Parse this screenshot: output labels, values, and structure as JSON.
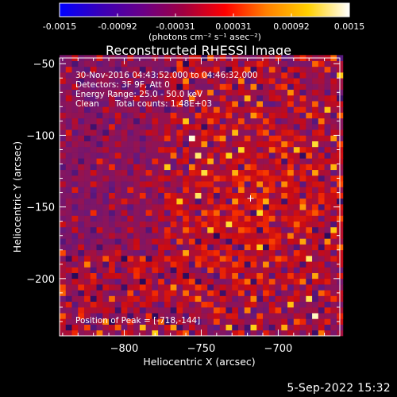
{
  "colorbar": {
    "tick_labels": [
      "-0.0015",
      "-0.00092",
      "-0.00031",
      "0.00031",
      "0.00092",
      "0.0015"
    ],
    "unit_label": "(photons cm⁻² s⁻¹ asec⁻²)",
    "colors": [
      "#0000ff",
      "#3a00b8",
      "#6a0088",
      "#a00040",
      "#ff0000",
      "#ff8000",
      "#ffd000",
      "#ffffff"
    ],
    "range": [
      -0.0015,
      0.0015
    ]
  },
  "annotations": {
    "time_range": "30-Nov-2016 04:43:52.000 to 04:46:32.000",
    "detectors": "Detectors: 3F 9F, Att 0",
    "energy_range": "Energy Range: 25.0 - 50.0 keV",
    "clean": "Clean",
    "total_counts": "Total counts: 1.48E+03",
    "peak": "Position of Peak = [-718,-144]"
  },
  "footer": {
    "date": "5-Sep-2022 15:32"
  },
  "chart_data": {
    "type": "heatmap",
    "title": "Reconstructed RHESSI Image",
    "xlabel": "Heliocentric X (arcsec)",
    "ylabel": "Heliocentric Y (arcsec)",
    "xlim": [
      -842,
      -660
    ],
    "ylim": [
      -240,
      -46
    ],
    "x_ticks": [
      -800,
      -750,
      -700
    ],
    "x_tick_labels": [
      "−800",
      "−750",
      "−700"
    ],
    "y_ticks": [
      -50,
      -100,
      -150,
      -200
    ],
    "y_tick_labels": [
      "−50",
      "−100",
      "−150",
      "−200"
    ],
    "grid": false,
    "peak_position": [
      -718,
      -144
    ],
    "pixel_size_arcsec": 4,
    "colormap": "red-temperature",
    "note": ""
  }
}
